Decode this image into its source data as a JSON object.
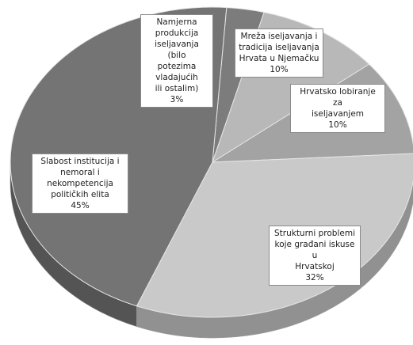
{
  "chart_data": {
    "type": "pie",
    "variant": "3d",
    "title": "",
    "slices": [
      {
        "label": "Namjerna\nprodukcija\niseljavanja (bilo\npotezima vladajućih\nili ostalim)",
        "value": 3,
        "value_label": "3%",
        "color": "#7c7c7c"
      },
      {
        "label": "Mreža iseljavanja i\ntradicija iseljavanja\nHrvata u Njemačku",
        "value": 10,
        "value_label": "10%",
        "color": "#b8b8b8"
      },
      {
        "label": "Hrvatsko lobiranje za\niseljavanjem",
        "value": 10,
        "value_label": "10%",
        "color": "#a3a3a3"
      },
      {
        "label": "Strukturni  problemi\nkoje građani iskuse u\nHrvatskoj",
        "value": 32,
        "value_label": "32%",
        "color": "#c9c9c9"
      },
      {
        "label": "Slabost institucija i\nnemoral  i\nnekompetencija\npolitičkih elita",
        "value": 45,
        "value_label": "45%",
        "color": "#747474"
      }
    ]
  }
}
